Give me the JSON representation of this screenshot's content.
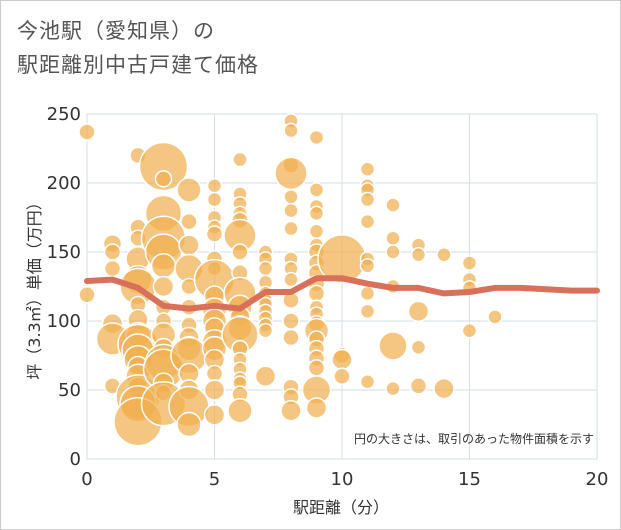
{
  "title": {
    "line1": "今池駅（愛知県）の",
    "line2": "駅距離別中古戸建て価格"
  },
  "colors": {
    "bubble": "#f0b050",
    "bubble_stroke": "#ffffff",
    "trend": "#d9705a",
    "grid": "#d6dde6",
    "frame": "#cccccc"
  },
  "chart_data": {
    "type": "scatter",
    "xlabel": "駅距離（分）",
    "ylabel": "坪（3.3㎡）単価（万円）",
    "xlim": [
      0,
      20
    ],
    "ylim": [
      0,
      250
    ],
    "xticks": [
      0,
      5,
      10,
      15,
      20
    ],
    "yticks": [
      0,
      50,
      100,
      150,
      200,
      250
    ],
    "grid": true,
    "note": "円の大きさは、取引のあった物件面積を示す",
    "bubbles": [
      {
        "x": 0,
        "y": 237,
        "s": 8
      },
      {
        "x": 0,
        "y": 119,
        "s": 8
      },
      {
        "x": 1,
        "y": 156,
        "s": 9
      },
      {
        "x": 1,
        "y": 150,
        "s": 8
      },
      {
        "x": 1,
        "y": 138,
        "s": 8
      },
      {
        "x": 1,
        "y": 98,
        "s": 10
      },
      {
        "x": 1,
        "y": 87,
        "s": 16
      },
      {
        "x": 1,
        "y": 53,
        "s": 8
      },
      {
        "x": 2,
        "y": 220,
        "s": 8
      },
      {
        "x": 2,
        "y": 168,
        "s": 8
      },
      {
        "x": 2,
        "y": 160,
        "s": 8
      },
      {
        "x": 2,
        "y": 145,
        "s": 12
      },
      {
        "x": 2,
        "y": 130,
        "s": 14
      },
      {
        "x": 2,
        "y": 125,
        "s": 18
      },
      {
        "x": 2,
        "y": 112,
        "s": 8
      },
      {
        "x": 2,
        "y": 101,
        "s": 10
      },
      {
        "x": 2,
        "y": 90,
        "s": 12
      },
      {
        "x": 2,
        "y": 83,
        "s": 20
      },
      {
        "x": 2,
        "y": 79,
        "s": 16
      },
      {
        "x": 2,
        "y": 72,
        "s": 14
      },
      {
        "x": 2,
        "y": 67,
        "s": 10
      },
      {
        "x": 2,
        "y": 60,
        "s": 12
      },
      {
        "x": 2,
        "y": 52,
        "s": 10
      },
      {
        "x": 2,
        "y": 45,
        "s": 22
      },
      {
        "x": 2,
        "y": 40,
        "s": 18
      },
      {
        "x": 2,
        "y": 27,
        "s": 24
      },
      {
        "x": 3,
        "y": 212,
        "s": 24
      },
      {
        "x": 3,
        "y": 203,
        "s": 8
      },
      {
        "x": 3,
        "y": 178,
        "s": 18
      },
      {
        "x": 3,
        "y": 160,
        "s": 22
      },
      {
        "x": 3,
        "y": 150,
        "s": 18
      },
      {
        "x": 3,
        "y": 140,
        "s": 12
      },
      {
        "x": 3,
        "y": 125,
        "s": 10
      },
      {
        "x": 3,
        "y": 110,
        "s": 8
      },
      {
        "x": 3,
        "y": 100,
        "s": 8
      },
      {
        "x": 3,
        "y": 90,
        "s": 12
      },
      {
        "x": 3,
        "y": 80,
        "s": 10
      },
      {
        "x": 3,
        "y": 70,
        "s": 18
      },
      {
        "x": 3,
        "y": 65,
        "s": 20
      },
      {
        "x": 3,
        "y": 55,
        "s": 10
      },
      {
        "x": 3,
        "y": 48,
        "s": 8
      },
      {
        "x": 3,
        "y": 40,
        "s": 22
      },
      {
        "x": 4,
        "y": 195,
        "s": 12
      },
      {
        "x": 4,
        "y": 172,
        "s": 8
      },
      {
        "x": 4,
        "y": 155,
        "s": 10
      },
      {
        "x": 4,
        "y": 138,
        "s": 14
      },
      {
        "x": 4,
        "y": 125,
        "s": 8
      },
      {
        "x": 4,
        "y": 110,
        "s": 8
      },
      {
        "x": 4,
        "y": 97,
        "s": 8
      },
      {
        "x": 4,
        "y": 88,
        "s": 10
      },
      {
        "x": 4,
        "y": 80,
        "s": 12
      },
      {
        "x": 4,
        "y": 75,
        "s": 18
      },
      {
        "x": 4,
        "y": 62,
        "s": 10
      },
      {
        "x": 4,
        "y": 50,
        "s": 10
      },
      {
        "x": 4,
        "y": 38,
        "s": 20
      },
      {
        "x": 4,
        "y": 25,
        "s": 12
      },
      {
        "x": 5,
        "y": 198,
        "s": 7
      },
      {
        "x": 5,
        "y": 188,
        "s": 7
      },
      {
        "x": 5,
        "y": 175,
        "s": 7
      },
      {
        "x": 5,
        "y": 168,
        "s": 7
      },
      {
        "x": 5,
        "y": 163,
        "s": 8
      },
      {
        "x": 5,
        "y": 145,
        "s": 8
      },
      {
        "x": 5,
        "y": 138,
        "s": 7
      },
      {
        "x": 5,
        "y": 130,
        "s": 20
      },
      {
        "x": 5,
        "y": 118,
        "s": 10
      },
      {
        "x": 5,
        "y": 108,
        "s": 12
      },
      {
        "x": 5,
        "y": 100,
        "s": 12
      },
      {
        "x": 5,
        "y": 95,
        "s": 10
      },
      {
        "x": 5,
        "y": 85,
        "s": 12
      },
      {
        "x": 5,
        "y": 80,
        "s": 12
      },
      {
        "x": 5,
        "y": 72,
        "s": 10
      },
      {
        "x": 5,
        "y": 62,
        "s": 8
      },
      {
        "x": 5,
        "y": 50,
        "s": 10
      },
      {
        "x": 5,
        "y": 32,
        "s": 10
      },
      {
        "x": 6,
        "y": 217,
        "s": 7
      },
      {
        "x": 6,
        "y": 192,
        "s": 7
      },
      {
        "x": 6,
        "y": 185,
        "s": 7
      },
      {
        "x": 6,
        "y": 178,
        "s": 7
      },
      {
        "x": 6,
        "y": 173,
        "s": 8
      },
      {
        "x": 6,
        "y": 162,
        "s": 16
      },
      {
        "x": 6,
        "y": 150,
        "s": 8
      },
      {
        "x": 6,
        "y": 135,
        "s": 8
      },
      {
        "x": 6,
        "y": 120,
        "s": 16
      },
      {
        "x": 6,
        "y": 110,
        "s": 12
      },
      {
        "x": 6,
        "y": 103,
        "s": 10
      },
      {
        "x": 6,
        "y": 95,
        "s": 12
      },
      {
        "x": 6,
        "y": 90,
        "s": 18
      },
      {
        "x": 6,
        "y": 80,
        "s": 8
      },
      {
        "x": 6,
        "y": 72,
        "s": 7
      },
      {
        "x": 6,
        "y": 65,
        "s": 7
      },
      {
        "x": 6,
        "y": 58,
        "s": 7
      },
      {
        "x": 6,
        "y": 55,
        "s": 7
      },
      {
        "x": 6,
        "y": 47,
        "s": 8
      },
      {
        "x": 6,
        "y": 35,
        "s": 12
      },
      {
        "x": 7,
        "y": 150,
        "s": 7
      },
      {
        "x": 7,
        "y": 145,
        "s": 7
      },
      {
        "x": 7,
        "y": 138,
        "s": 7
      },
      {
        "x": 7,
        "y": 128,
        "s": 7
      },
      {
        "x": 7,
        "y": 120,
        "s": 7
      },
      {
        "x": 7,
        "y": 115,
        "s": 7
      },
      {
        "x": 7,
        "y": 112,
        "s": 7
      },
      {
        "x": 7,
        "y": 107,
        "s": 7
      },
      {
        "x": 7,
        "y": 102,
        "s": 7
      },
      {
        "x": 7,
        "y": 97,
        "s": 7
      },
      {
        "x": 7,
        "y": 93,
        "s": 7
      },
      {
        "x": 7,
        "y": 60,
        "s": 10
      },
      {
        "x": 8,
        "y": 245,
        "s": 7
      },
      {
        "x": 8,
        "y": 238,
        "s": 7
      },
      {
        "x": 8,
        "y": 213,
        "s": 8
      },
      {
        "x": 8,
        "y": 207,
        "s": 16
      },
      {
        "x": 8,
        "y": 190,
        "s": 7
      },
      {
        "x": 8,
        "y": 180,
        "s": 7
      },
      {
        "x": 8,
        "y": 167,
        "s": 7
      },
      {
        "x": 8,
        "y": 145,
        "s": 7
      },
      {
        "x": 8,
        "y": 138,
        "s": 7
      },
      {
        "x": 8,
        "y": 130,
        "s": 7
      },
      {
        "x": 8,
        "y": 115,
        "s": 8
      },
      {
        "x": 8,
        "y": 100,
        "s": 8
      },
      {
        "x": 8,
        "y": 88,
        "s": 8
      },
      {
        "x": 8,
        "y": 52,
        "s": 8
      },
      {
        "x": 8,
        "y": 45,
        "s": 8
      },
      {
        "x": 8,
        "y": 35,
        "s": 10
      },
      {
        "x": 9,
        "y": 233,
        "s": 7
      },
      {
        "x": 9,
        "y": 195,
        "s": 7
      },
      {
        "x": 9,
        "y": 183,
        "s": 7
      },
      {
        "x": 9,
        "y": 178,
        "s": 7
      },
      {
        "x": 9,
        "y": 165,
        "s": 7
      },
      {
        "x": 9,
        "y": 155,
        "s": 7
      },
      {
        "x": 9,
        "y": 150,
        "s": 8
      },
      {
        "x": 9,
        "y": 142,
        "s": 8
      },
      {
        "x": 9,
        "y": 135,
        "s": 8
      },
      {
        "x": 9,
        "y": 127,
        "s": 8
      },
      {
        "x": 9,
        "y": 120,
        "s": 8
      },
      {
        "x": 9,
        "y": 110,
        "s": 7
      },
      {
        "x": 9,
        "y": 105,
        "s": 7
      },
      {
        "x": 9,
        "y": 98,
        "s": 8
      },
      {
        "x": 9,
        "y": 93,
        "s": 12
      },
      {
        "x": 9,
        "y": 87,
        "s": 8
      },
      {
        "x": 9,
        "y": 80,
        "s": 8
      },
      {
        "x": 9,
        "y": 73,
        "s": 8
      },
      {
        "x": 9,
        "y": 66,
        "s": 8
      },
      {
        "x": 9,
        "y": 50,
        "s": 14
      },
      {
        "x": 9,
        "y": 37,
        "s": 10
      },
      {
        "x": 10,
        "y": 145,
        "s": 24
      },
      {
        "x": 10,
        "y": 75,
        "s": 8
      },
      {
        "x": 10,
        "y": 72,
        "s": 10
      },
      {
        "x": 10,
        "y": 60,
        "s": 8
      },
      {
        "x": 11,
        "y": 210,
        "s": 7
      },
      {
        "x": 11,
        "y": 198,
        "s": 7
      },
      {
        "x": 11,
        "y": 195,
        "s": 7
      },
      {
        "x": 11,
        "y": 188,
        "s": 7
      },
      {
        "x": 11,
        "y": 172,
        "s": 7
      },
      {
        "x": 11,
        "y": 145,
        "s": 7
      },
      {
        "x": 11,
        "y": 140,
        "s": 7
      },
      {
        "x": 11,
        "y": 120,
        "s": 7
      },
      {
        "x": 11,
        "y": 107,
        "s": 7
      },
      {
        "x": 11,
        "y": 56,
        "s": 7
      },
      {
        "x": 12,
        "y": 184,
        "s": 7
      },
      {
        "x": 12,
        "y": 160,
        "s": 7
      },
      {
        "x": 12,
        "y": 150,
        "s": 7
      },
      {
        "x": 12,
        "y": 125,
        "s": 7
      },
      {
        "x": 12,
        "y": 82,
        "s": 14
      },
      {
        "x": 12,
        "y": 51,
        "s": 7
      },
      {
        "x": 13,
        "y": 155,
        "s": 7
      },
      {
        "x": 13,
        "y": 148,
        "s": 7
      },
      {
        "x": 13,
        "y": 107,
        "s": 10
      },
      {
        "x": 13,
        "y": 81,
        "s": 7
      },
      {
        "x": 13,
        "y": 53,
        "s": 8
      },
      {
        "x": 14,
        "y": 148,
        "s": 7
      },
      {
        "x": 14,
        "y": 51,
        "s": 10
      },
      {
        "x": 15,
        "y": 142,
        "s": 7
      },
      {
        "x": 15,
        "y": 130,
        "s": 7
      },
      {
        "x": 15,
        "y": 124,
        "s": 7
      },
      {
        "x": 15,
        "y": 93,
        "s": 7
      },
      {
        "x": 16,
        "y": 103,
        "s": 7
      }
    ],
    "trend_line": {
      "x": [
        0,
        1,
        2,
        3,
        4,
        5,
        6,
        7,
        8,
        9,
        10,
        11,
        12,
        13,
        14,
        15,
        16,
        17,
        18,
        19,
        20
      ],
      "y": [
        129,
        130,
        124,
        111,
        109,
        111,
        109,
        121,
        121,
        131,
        131,
        127,
        124,
        124,
        120,
        121,
        124,
        124,
        123,
        122,
        122
      ]
    }
  }
}
